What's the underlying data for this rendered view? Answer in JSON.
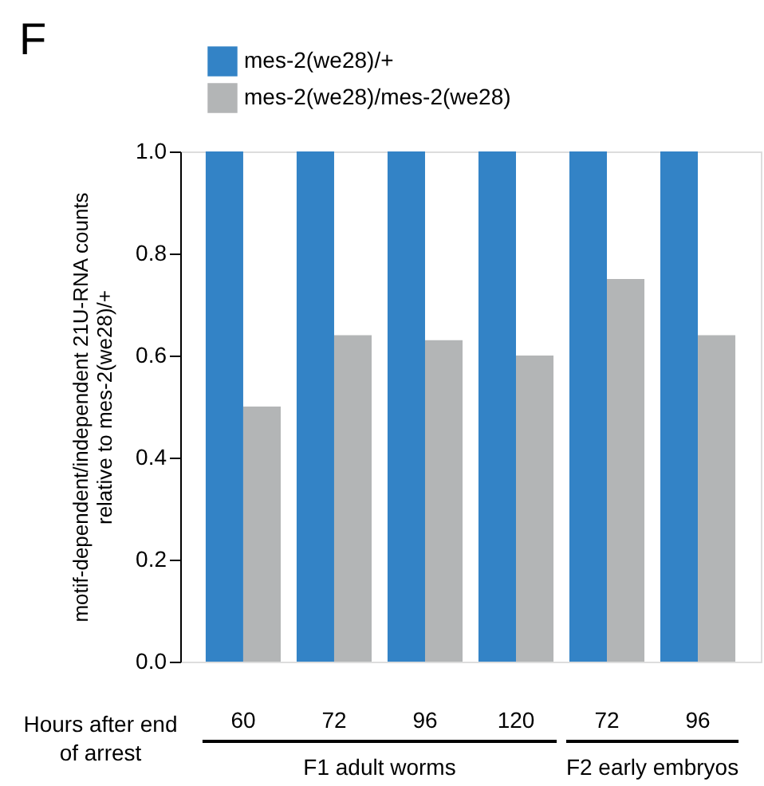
{
  "chart_data": {
    "type": "bar",
    "title": "F",
    "xlabel": "Hours after end of arrest",
    "ylabel": "motif-dependent/independent 21U-RNA counts\nrelative to mes-2(we28)/+",
    "categories": [
      "60",
      "72",
      "96",
      "120",
      "72",
      "96"
    ],
    "series": [
      {
        "name": "mes-2(we28)/+",
        "color": "#3383c6",
        "values": [
          1.0,
          1.0,
          1.0,
          1.0,
          1.0,
          1.0
        ]
      },
      {
        "name": "mes-2(we28)/mes-2(we28)",
        "color": "#b3b5b6",
        "values": [
          0.5,
          0.64,
          0.63,
          0.6,
          0.75,
          0.64
        ]
      }
    ],
    "annotations": [
      "F1 adult worms",
      "F2 early embryos"
    ],
    "ylim": [
      0,
      1
    ],
    "yticks": [
      {
        "value": 0,
        "label": "0.0"
      },
      0.2,
      0.4,
      0.6,
      0.8,
      {
        "value": 1,
        "label": "1.0"
      }
    ],
    "grid": false,
    "legend": "top"
  }
}
